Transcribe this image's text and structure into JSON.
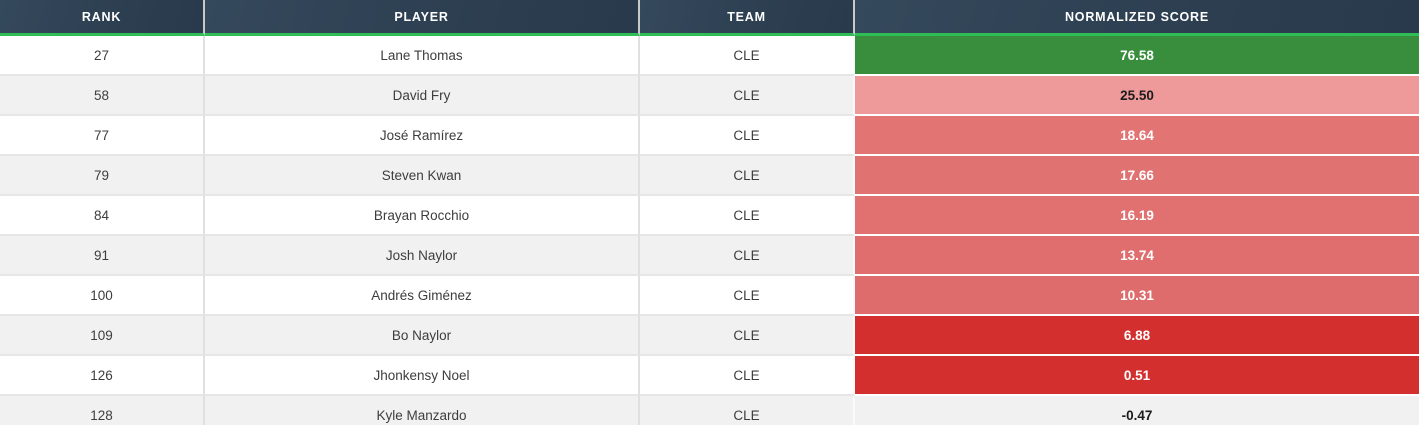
{
  "table": {
    "columns": [
      {
        "key": "rank",
        "label": "RANK"
      },
      {
        "key": "player",
        "label": "PLAYER"
      },
      {
        "key": "team",
        "label": "TEAM"
      },
      {
        "key": "score",
        "label": "NORMALIZED SCORE"
      }
    ],
    "rows": [
      {
        "rank": "27",
        "player": "Lane Thomas",
        "team": "CLE",
        "score": "76.58",
        "score_bg": "#388e3c",
        "score_fg": "#ffffff"
      },
      {
        "rank": "58",
        "player": "David Fry",
        "team": "CLE",
        "score": "25.50",
        "score_bg": "#ef9a9a",
        "score_fg": "#1c1c1c"
      },
      {
        "rank": "77",
        "player": "José Ramírez",
        "team": "CLE",
        "score": "18.64",
        "score_bg": "#e27474",
        "score_fg": "#ffffff"
      },
      {
        "rank": "79",
        "player": "Steven Kwan",
        "team": "CLE",
        "score": "17.66",
        "score_bg": "#e17272",
        "score_fg": "#ffffff"
      },
      {
        "rank": "84",
        "player": "Brayan Rocchio",
        "team": "CLE",
        "score": "16.19",
        "score_bg": "#e17070",
        "score_fg": "#ffffff"
      },
      {
        "rank": "91",
        "player": "Josh Naylor",
        "team": "CLE",
        "score": "13.74",
        "score_bg": "#e06e6e",
        "score_fg": "#ffffff"
      },
      {
        "rank": "100",
        "player": "Andrés Giménez",
        "team": "CLE",
        "score": "10.31",
        "score_bg": "#df6c6c",
        "score_fg": "#ffffff"
      },
      {
        "rank": "109",
        "player": "Bo Naylor",
        "team": "CLE",
        "score": "6.88",
        "score_bg": "#d32f2f",
        "score_fg": "#ffffff"
      },
      {
        "rank": "126",
        "player": "Jhonkensy Noel",
        "team": "CLE",
        "score": "0.51",
        "score_bg": "#d32f2f",
        "score_fg": "#ffffff"
      },
      {
        "rank": "128",
        "player": "Kyle Manzardo",
        "team": "CLE",
        "score": "-0.47",
        "score_bg": "",
        "score_fg": "#1c1c1c"
      }
    ],
    "colors": {
      "header_bg": "#2c3e50",
      "header_text": "#ffffff",
      "header_accent_line": "#2fbd55",
      "row_stripe": "#f1f1f1",
      "score_green": "#388e3c",
      "score_pink": "#ef9a9a",
      "score_mid_red": "#e17070",
      "score_bright_red": "#d32f2f"
    }
  }
}
